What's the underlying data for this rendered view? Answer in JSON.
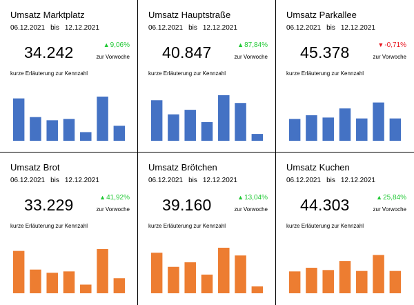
{
  "colors": {
    "blue": "#4472c4",
    "orange": "#ed7d31",
    "up": "#1ec832",
    "down": "#e8141e"
  },
  "cards": [
    {
      "title": "Umsatz Marktplatz",
      "date_from": "06.12.2021",
      "date_sep": "bis",
      "date_to": "12.12.2021",
      "value": "34.242",
      "change": "9,06%",
      "change_direction": "up",
      "change_arrow": "▲",
      "change_label": "zur Vorwoche",
      "description": "kurze Erläuterung zur Kennzahl",
      "bar_color": "#4472c4"
    },
    {
      "title": "Umsatz Hauptstraße",
      "date_from": "06.12.2021",
      "date_sep": "bis",
      "date_to": "12.12.2021",
      "value": "40.847",
      "change": "87,84%",
      "change_direction": "up",
      "change_arrow": "▲",
      "change_label": "zur Vorwoche",
      "description": "kurze Erläuterung zur Kennzahl",
      "bar_color": "#4472c4"
    },
    {
      "title": "Umsatz Parkallee",
      "date_from": "06.12.2021",
      "date_sep": "bis",
      "date_to": "12.12.2021",
      "value": "45.378",
      "change": "-0,71%",
      "change_direction": "down",
      "change_arrow": "▼",
      "change_label": "zur Vorwoche",
      "description": "kurze Erläuterung zur Kennzahl",
      "bar_color": "#4472c4"
    },
    {
      "title": "Umsatz Brot",
      "date_from": "06.12.2021",
      "date_sep": "bis",
      "date_to": "12.12.2021",
      "value": "33.229",
      "change": "41,92%",
      "change_direction": "up",
      "change_arrow": "▲",
      "change_label": "zur Vorwoche",
      "description": "kurze Erläuterung zur Kennzahl",
      "bar_color": "#ed7d31"
    },
    {
      "title": "Umsatz Brötchen",
      "date_from": "06.12.2021",
      "date_sep": "bis",
      "date_to": "12.12.2021",
      "value": "39.160",
      "change": "13,04%",
      "change_direction": "up",
      "change_arrow": "▲",
      "change_label": "zur Vorwoche",
      "description": "kurze Erläuterung zur Kennzahl",
      "bar_color": "#ed7d31"
    },
    {
      "title": "Umsatz Kuchen",
      "date_from": "06.12.2021",
      "date_sep": "bis",
      "date_to": "12.12.2021",
      "value": "44.303",
      "change": "25,84%",
      "change_direction": "up",
      "change_arrow": "▲",
      "change_label": "zur Vorwoche",
      "description": "kurze Erläuterung zur Kennzahl",
      "bar_color": "#ed7d31"
    }
  ],
  "chart_data": [
    {
      "type": "bar",
      "ylim": [
        0,
        100
      ],
      "grid": false,
      "values": [
        93,
        52,
        45,
        48,
        19,
        97,
        33
      ]
    },
    {
      "type": "bar",
      "ylim": [
        0,
        100
      ],
      "grid": false,
      "values": [
        89,
        58,
        68,
        41,
        100,
        83,
        15
      ]
    },
    {
      "type": "bar",
      "ylim": [
        0,
        100
      ],
      "grid": false,
      "values": [
        48,
        56,
        51,
        71,
        49,
        84,
        49
      ]
    },
    {
      "type": "bar",
      "ylim": [
        0,
        100
      ],
      "grid": false,
      "values": [
        93,
        52,
        45,
        48,
        19,
        97,
        33
      ]
    },
    {
      "type": "bar",
      "ylim": [
        0,
        100
      ],
      "grid": false,
      "values": [
        89,
        58,
        68,
        41,
        100,
        83,
        15
      ]
    },
    {
      "type": "bar",
      "ylim": [
        0,
        100
      ],
      "grid": false,
      "values": [
        48,
        56,
        51,
        71,
        49,
        84,
        49
      ]
    }
  ]
}
